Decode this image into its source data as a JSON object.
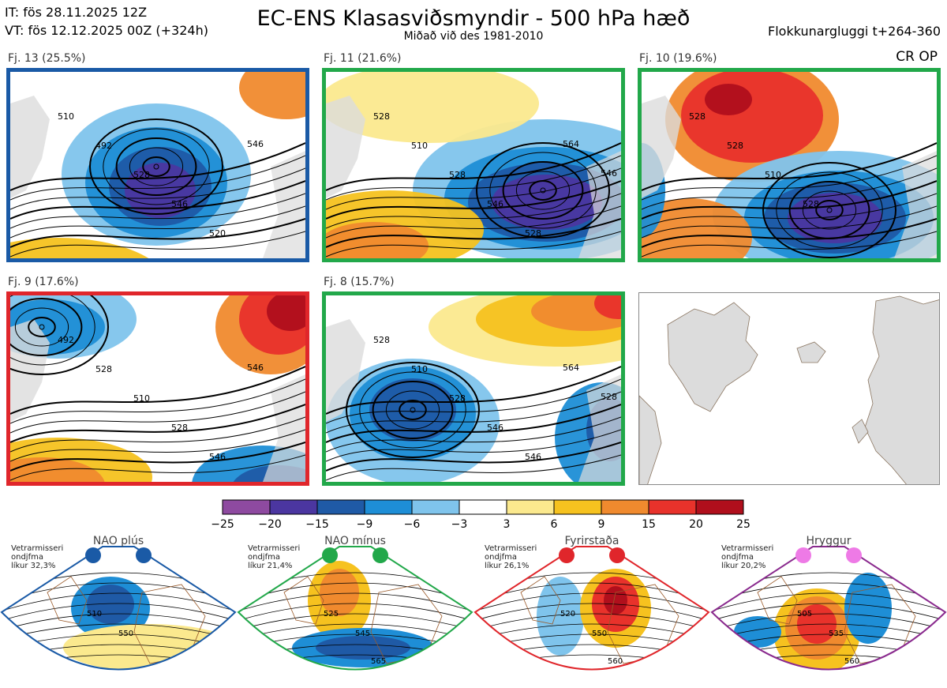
{
  "header": {
    "it_line": "IT: fös 28.11.2025 12Z",
    "vt_line": "VT: fös 12.12.2025 00Z  (+324h)",
    "title": "EC-ENS Klasasviðsmyndir - 500 hPa hæð",
    "subtitle": "Miðað við des 1981-2010",
    "window": "Flokkunargluggi t+264-360",
    "corner_label": "CR OP"
  },
  "panels": [
    {
      "label": "Fj. 13 (25.5%)",
      "frame_color": "#1a5aa6",
      "regime": "NAO plús",
      "contours": [
        "510",
        "492",
        "528",
        "546",
        "520",
        "546"
      ]
    },
    {
      "label": "Fj. 11 (21.6%)",
      "frame_color": "#22a84a",
      "regime": "NAO mínus",
      "contours": [
        "528",
        "510",
        "528",
        "546",
        "528",
        "564",
        "546"
      ]
    },
    {
      "label": "Fj. 10 (19.6%)",
      "frame_color": "#22a84a",
      "regime": "NAO mínus",
      "contours": [
        "528",
        "528",
        "510",
        "528"
      ]
    },
    {
      "label": "Fj. 9 (17.6%)",
      "frame_color": "#e0262b",
      "regime": "Fyrirstaða",
      "contours": [
        "492",
        "528",
        "510",
        "528",
        "546",
        "546"
      ]
    },
    {
      "label": "Fj. 8 (15.7%)",
      "frame_color": "#22a84a",
      "regime": "NAO mínus",
      "contours": [
        "528",
        "510",
        "528",
        "546",
        "546",
        "564",
        "528"
      ]
    }
  ],
  "colorbar": {
    "ticks": [
      "−25",
      "−20",
      "−15",
      "−9",
      "−6",
      "−3",
      "3",
      "6",
      "9",
      "15",
      "20",
      "25"
    ],
    "colors": [
      "#8e4aa0",
      "#4b36a0",
      "#1f5aa6",
      "#1e8ed6",
      "#7fc4ec",
      "#ffffff",
      "#fbe98e",
      "#f6c21f",
      "#f08a2e",
      "#e8322b",
      "#b00f1c"
    ]
  },
  "regimes": [
    {
      "title": "NAO plús",
      "note": [
        "Vetrarmisseri",
        "ondjfma",
        "líkur 32,3%"
      ],
      "color": "#1a5aa6",
      "dot": "#1a5aa6",
      "contours": [
        "510",
        "550"
      ]
    },
    {
      "title": "NAO mínus",
      "note": [
        "Vetrarmisseri",
        "ondjfma",
        "líkur 21,4%"
      ],
      "color": "#22a84a",
      "dot": "#22a84a",
      "contours": [
        "525",
        "545",
        "565"
      ]
    },
    {
      "title": "Fyrirstaða",
      "note": [
        "Vetrarmisseri",
        "ondjfma",
        "líkur 26,1%"
      ],
      "color": "#e0262b",
      "dot": "#e0262b",
      "contours": [
        "520",
        "550",
        "560"
      ]
    },
    {
      "title": "Hryggur",
      "note": [
        "Vetrarmisseri",
        "ondjfma",
        "líkur 20,2%"
      ],
      "color": "#8a2a8e",
      "dot": "#ee7ae6",
      "contours": [
        "505",
        "535",
        "560"
      ]
    }
  ]
}
